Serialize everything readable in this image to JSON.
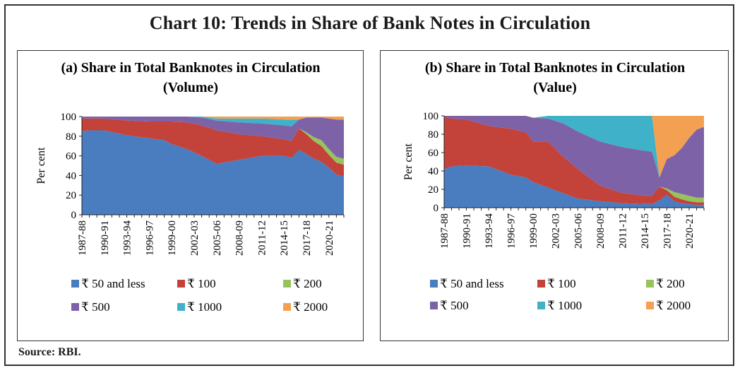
{
  "title": "Chart 10: Trends in Share of Bank Notes in Circulation",
  "source": "Source: RBI.",
  "colors": {
    "r50": "#4a7cc0",
    "r100": "#c3423a",
    "r200": "#97c35c",
    "r500": "#7d62a8",
    "r1000": "#3fb1c9",
    "r2000": "#f4a052"
  },
  "chart_data": [
    {
      "type": "area",
      "stacked": true,
      "title": "(a) Share in Total Banknotes in Circulation",
      "subtitle": "(Volume)",
      "xlabel": "",
      "ylabel": "Per cent",
      "ylim": [
        0,
        100
      ],
      "yticks": [
        0,
        20,
        40,
        60,
        80,
        100
      ],
      "xticks": [
        "1987-88",
        "1990-91",
        "1993-94",
        "1996-97",
        "1999-00",
        "2002-03",
        "2005-06",
        "2008-09",
        "2011-12",
        "2014-15",
        "2017-18",
        "2020-21"
      ],
      "x": [
        1987,
        1988,
        1990,
        1993,
        1996,
        1998,
        1999,
        2001,
        2003,
        2005,
        2008,
        2011,
        2014,
        2015,
        2016,
        2017,
        2018,
        2019,
        2020,
        2021,
        2022
      ],
      "legend": "bottom",
      "series": [
        {
          "name": "₹ 50 and less",
          "color_key": "r50",
          "values": [
            85,
            86,
            86,
            81,
            78,
            76,
            72,
            67,
            60,
            52,
            56,
            60,
            60,
            58,
            66,
            62,
            57,
            54,
            48,
            41,
            39
          ]
        },
        {
          "name": "₹ 100",
          "color_key": "r100",
          "values": [
            13,
            12,
            12,
            15,
            17,
            19,
            23,
            27,
            31,
            34,
            26,
            20,
            17,
            17,
            22,
            20,
            18,
            16,
            13,
            12,
            12
          ]
        },
        {
          "name": "₹ 200",
          "color_key": "r200",
          "values": [
            0,
            0,
            0,
            0,
            0,
            0,
            0,
            0,
            0,
            0,
            0,
            0,
            0,
            0,
            0,
            2,
            4,
            6,
            6,
            6,
            6
          ]
        },
        {
          "name": "₹ 500",
          "color_key": "r500",
          "values": [
            2,
            2,
            2,
            4,
            5,
            5,
            5,
            6,
            8,
            10,
            12,
            13,
            14,
            15,
            9,
            15,
            20,
            23,
            31,
            38,
            40
          ]
        },
        {
          "name": "₹ 1000",
          "color_key": "r1000",
          "values": [
            0,
            0,
            0,
            0,
            0,
            0,
            0,
            0,
            1,
            2,
            4,
            5,
            6,
            7,
            0,
            0,
            0,
            0,
            0,
            0,
            0
          ]
        },
        {
          "name": "₹ 2000",
          "color_key": "r2000",
          "values": [
            0,
            0,
            0,
            0,
            0,
            0,
            0,
            0,
            0,
            2,
            2,
            2,
            3,
            3,
            3,
            1,
            1,
            1,
            2,
            3,
            3
          ]
        }
      ]
    },
    {
      "type": "area",
      "stacked": true,
      "title": "(b) Share in Total Banknotes in Circulation",
      "subtitle": "(Value)",
      "xlabel": "",
      "ylabel": "Per cent",
      "ylim": [
        0,
        100
      ],
      "yticks": [
        0,
        20,
        40,
        60,
        80,
        100
      ],
      "xticks": [
        "1987-88",
        "1990-91",
        "1993-94",
        "1996-97",
        "1999-00",
        "2002-03",
        "2005-06",
        "2008-09",
        "2011-12",
        "2014-15",
        "2017-18",
        "2020-21"
      ],
      "x": [
        1987,
        1988,
        1990,
        1993,
        1996,
        1998,
        1999,
        2001,
        2003,
        2005,
        2008,
        2011,
        2014,
        2015,
        2016,
        2017,
        2018,
        2019,
        2020,
        2021,
        2022
      ],
      "legend": "bottom",
      "series": [
        {
          "name": "₹ 50 and less",
          "color_key": "r50",
          "values": [
            42,
            45,
            46,
            45,
            36,
            33,
            28,
            22,
            16,
            10,
            7,
            5,
            4,
            4,
            8,
            14,
            7,
            5,
            4,
            3,
            3
          ]
        },
        {
          "name": "₹ 100",
          "color_key": "r100",
          "values": [
            57,
            52,
            50,
            44,
            50,
            49,
            44,
            50,
            40,
            32,
            17,
            11,
            9,
            9,
            15,
            5,
            5,
            4,
            3,
            3,
            3
          ]
        },
        {
          "name": "₹ 200",
          "color_key": "r200",
          "values": [
            0,
            0,
            0,
            0,
            0,
            0,
            0,
            0,
            0,
            0,
            0,
            0,
            0,
            0,
            0,
            2,
            5,
            6,
            6,
            5,
            5
          ]
        },
        {
          "name": "₹ 500",
          "color_key": "r500",
          "values": [
            1,
            3,
            4,
            11,
            14,
            18,
            26,
            25,
            36,
            41,
            48,
            50,
            49,
            48,
            10,
            32,
            40,
            50,
            63,
            74,
            77
          ]
        },
        {
          "name": "₹ 1000",
          "color_key": "r1000",
          "values": [
            0,
            0,
            0,
            0,
            0,
            0,
            0,
            3,
            8,
            17,
            28,
            34,
            38,
            39,
            0,
            0,
            0,
            0,
            0,
            0,
            0
          ]
        },
        {
          "name": "₹ 2000",
          "color_key": "r2000",
          "values": [
            0,
            0,
            0,
            0,
            0,
            0,
            0,
            0,
            0,
            0,
            0,
            0,
            0,
            0,
            67,
            47,
            43,
            35,
            24,
            15,
            12
          ]
        }
      ]
    }
  ]
}
